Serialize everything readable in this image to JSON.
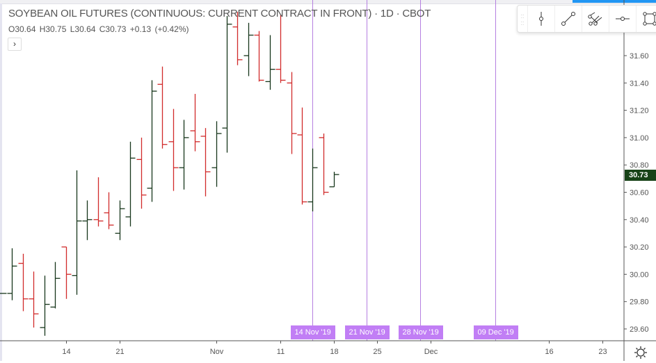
{
  "header": {
    "title": "SOYBEAN OIL FUTURES (CONTINUOUS: CURRENT CONTRACT IN FRONT) · 1D · CBOT",
    "ohlc": "O30.64  H30.75  L30.64  C30.73  +0.13 (+0.42%)",
    "expand_label": "›"
  },
  "toolbar": {
    "tools": [
      "vertical-line-icon",
      "trend-line-icon",
      "pitchfork-icon",
      "horizontal-ray-icon",
      "rectangle-icon"
    ]
  },
  "colors": {
    "up": "#17361b",
    "down": "#d12a2a",
    "marker": "#b57fe0",
    "marker_label": "#c17ef5",
    "last_price_bg": "#174217"
  },
  "chart_data": {
    "type": "ohlc",
    "title": "SOYBEAN OIL FUTURES (CONTINUOUS: CURRENT CONTRACT IN FRONT) · 1D · CBOT",
    "ylim": [
      29.5,
      31.9
    ],
    "y_ticks": [
      "29.60",
      "29.80",
      "30.00",
      "30.20",
      "30.40",
      "30.60",
      "30.80",
      "31.00",
      "31.20",
      "31.40",
      "31.60"
    ],
    "last_price": "30.73",
    "x_ticks": [
      {
        "label": "14",
        "day": 7
      },
      {
        "label": "21",
        "day": 12
      },
      {
        "label": "Nov",
        "day": 21
      },
      {
        "label": "11",
        "day": 27
      },
      {
        "label": "18",
        "day": 32
      },
      {
        "label": "25",
        "day": 36
      },
      {
        "label": "Dec",
        "day": 41
      },
      {
        "label": "16",
        "day": 52
      },
      {
        "label": "23",
        "day": 57
      }
    ],
    "markers": [
      {
        "label": "14 Nov '19",
        "day": 30
      },
      {
        "label": "21 Nov '19",
        "day": 35
      },
      {
        "label": "28 Nov '19",
        "day": 40
      },
      {
        "label": "09 Dec '19",
        "day": 47
      }
    ],
    "bars": [
      {
        "date": "2019-10-04",
        "o": 29.86,
        "h": 29.86,
        "l": 29.86,
        "c": 29.86
      },
      {
        "date": "2019-10-07",
        "o": 29.86,
        "h": 30.19,
        "l": 29.81,
        "c": 30.06
      },
      {
        "date": "2019-10-08",
        "o": 30.08,
        "h": 30.15,
        "l": 29.73,
        "c": 29.82
      },
      {
        "date": "2019-10-09",
        "o": 29.82,
        "h": 30.02,
        "l": 29.61,
        "c": 29.71
      },
      {
        "date": "2019-10-10",
        "o": 29.61,
        "h": 29.99,
        "l": 29.55,
        "c": 29.78
      },
      {
        "date": "2019-10-11",
        "o": 29.76,
        "h": 30.09,
        "l": 29.75,
        "c": 29.97
      },
      {
        "date": "2019-10-14",
        "o": 30.2,
        "h": 30.2,
        "l": 29.82,
        "c": 30.0
      },
      {
        "date": "2019-10-15",
        "o": 29.99,
        "h": 30.76,
        "l": 29.85,
        "c": 30.39
      },
      {
        "date": "2019-10-16",
        "o": 30.39,
        "h": 30.54,
        "l": 30.25,
        "c": 30.4
      },
      {
        "date": "2019-10-17",
        "o": 30.4,
        "h": 30.71,
        "l": 30.35,
        "c": 30.39
      },
      {
        "date": "2019-10-18",
        "o": 30.45,
        "h": 30.6,
        "l": 30.33,
        "c": 30.36
      },
      {
        "date": "2019-10-21",
        "o": 30.3,
        "h": 30.54,
        "l": 30.25,
        "c": 30.48
      },
      {
        "date": "2019-10-22",
        "o": 30.42,
        "h": 30.97,
        "l": 30.35,
        "c": 30.85
      },
      {
        "date": "2019-10-23",
        "o": 30.84,
        "h": 31.0,
        "l": 30.48,
        "c": 30.58
      },
      {
        "date": "2019-10-24",
        "o": 30.63,
        "h": 31.42,
        "l": 30.53,
        "c": 31.34
      },
      {
        "date": "2019-10-25",
        "o": 31.39,
        "h": 31.52,
        "l": 30.92,
        "c": 30.95
      },
      {
        "date": "2019-10-28",
        "o": 30.97,
        "h": 31.21,
        "l": 30.61,
        "c": 30.78
      },
      {
        "date": "2019-10-29",
        "o": 30.78,
        "h": 31.13,
        "l": 30.62,
        "c": 31.0
      },
      {
        "date": "2019-10-30",
        "o": 31.05,
        "h": 31.32,
        "l": 30.9,
        "c": 30.97
      },
      {
        "date": "2019-10-31",
        "o": 31.01,
        "h": 31.07,
        "l": 30.57,
        "c": 30.75
      },
      {
        "date": "2019-11-01",
        "o": 30.78,
        "h": 31.12,
        "l": 30.64,
        "c": 31.03
      },
      {
        "date": "2019-11-04",
        "o": 31.07,
        "h": 31.89,
        "l": 30.89,
        "c": 31.83
      },
      {
        "date": "2019-11-05",
        "o": 31.81,
        "h": 31.92,
        "l": 31.53,
        "c": 31.57
      },
      {
        "date": "2019-11-06",
        "o": 31.6,
        "h": 31.84,
        "l": 31.45,
        "c": 31.75
      },
      {
        "date": "2019-11-07",
        "o": 31.75,
        "h": 31.78,
        "l": 31.41,
        "c": 31.42
      },
      {
        "date": "2019-11-08",
        "o": 31.41,
        "h": 31.75,
        "l": 31.35,
        "c": 31.5
      },
      {
        "date": "2019-11-11",
        "o": 31.5,
        "h": 31.9,
        "l": 31.4,
        "c": 31.42
      },
      {
        "date": "2019-11-12",
        "o": 31.4,
        "h": 31.48,
        "l": 30.88,
        "c": 31.03
      },
      {
        "date": "2019-11-13",
        "o": 31.02,
        "h": 31.22,
        "l": 30.51,
        "c": 30.53
      },
      {
        "date": "2019-11-14",
        "o": 30.53,
        "h": 30.92,
        "l": 30.46,
        "c": 30.78
      },
      {
        "date": "2019-11-15",
        "o": 31.0,
        "h": 31.03,
        "l": 30.58,
        "c": 30.6
      },
      {
        "date": "2019-11-18",
        "o": 30.64,
        "h": 30.75,
        "l": 30.64,
        "c": 30.73
      }
    ]
  }
}
